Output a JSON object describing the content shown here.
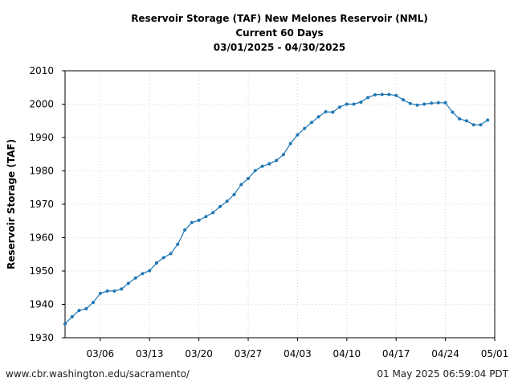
{
  "chart_data": {
    "type": "line",
    "title_lines": [
      "Reservoir Storage (TAF) New Melones Reservoir (NML)",
      "Current 60 Days",
      "03/01/2025 - 04/30/2025"
    ],
    "xlabel": "",
    "ylabel": "Reservoir Storage (TAF)",
    "ylim": [
      1930,
      2010
    ],
    "yticks": [
      1930,
      1940,
      1950,
      1960,
      1970,
      1980,
      1990,
      2000,
      2010
    ],
    "xlim": [
      "2025-03-01",
      "2025-05-01"
    ],
    "xticks": [
      {
        "date": "2025-03-06",
        "label": "03/06"
      },
      {
        "date": "2025-03-13",
        "label": "03/13"
      },
      {
        "date": "2025-03-20",
        "label": "03/20"
      },
      {
        "date": "2025-03-27",
        "label": "03/27"
      },
      {
        "date": "2025-04-03",
        "label": "04/03"
      },
      {
        "date": "2025-04-10",
        "label": "04/10"
      },
      {
        "date": "2025-04-17",
        "label": "04/17"
      },
      {
        "date": "2025-04-24",
        "label": "04/24"
      },
      {
        "date": "2025-05-01",
        "label": "05/01"
      }
    ],
    "grid": true,
    "color": "#1f77b4",
    "series": [
      {
        "x": [
          "2025-03-01",
          "2025-03-02",
          "2025-03-03",
          "2025-03-04",
          "2025-03-05",
          "2025-03-06",
          "2025-03-07",
          "2025-03-08",
          "2025-03-09",
          "2025-03-10",
          "2025-03-11",
          "2025-03-12",
          "2025-03-13",
          "2025-03-14",
          "2025-03-15",
          "2025-03-16",
          "2025-03-17",
          "2025-03-18",
          "2025-03-19",
          "2025-03-20",
          "2025-03-21",
          "2025-03-22",
          "2025-03-23",
          "2025-03-24",
          "2025-03-25",
          "2025-03-26",
          "2025-03-27",
          "2025-03-28",
          "2025-03-29",
          "2025-03-30",
          "2025-03-31",
          "2025-04-01",
          "2025-04-02",
          "2025-04-03",
          "2025-04-04",
          "2025-04-05",
          "2025-04-06",
          "2025-04-07",
          "2025-04-08",
          "2025-04-09",
          "2025-04-10",
          "2025-04-11",
          "2025-04-12",
          "2025-04-13",
          "2025-04-14",
          "2025-04-15",
          "2025-04-16",
          "2025-04-17",
          "2025-04-18",
          "2025-04-19",
          "2025-04-20",
          "2025-04-21",
          "2025-04-22",
          "2025-04-23",
          "2025-04-24",
          "2025-04-25",
          "2025-04-26",
          "2025-04-27",
          "2025-04-28",
          "2025-04-29",
          "2025-04-30"
        ],
        "values": [
          1934.2,
          1936.3,
          1938.2,
          1938.7,
          1940.6,
          1943.3,
          1944.0,
          1944.0,
          1944.6,
          1946.3,
          1947.9,
          1949.2,
          1950.1,
          1952.4,
          1954.0,
          1955.2,
          1958.0,
          1962.3,
          1964.5,
          1965.2,
          1966.3,
          1967.5,
          1969.3,
          1970.9,
          1972.9,
          1975.9,
          1977.7,
          1980.1,
          1981.4,
          1982.1,
          1983.1,
          1984.9,
          1988.2,
          1990.8,
          1992.7,
          1994.5,
          1996.2,
          1997.7,
          1997.6,
          1999.1,
          2000.0,
          2000.0,
          2000.6,
          2002.0,
          2002.8,
          2002.9,
          2002.9,
          2002.6,
          2001.3,
          2000.2,
          1999.7,
          2000.0,
          2000.3,
          2000.4,
          2000.4,
          1997.6,
          1995.6,
          1995.0,
          1993.8,
          1993.8,
          1995.2
        ]
      }
    ]
  },
  "footer": {
    "source_url": "www.cbr.washington.edu/sacramento/",
    "timestamp": "01 May 2025 06:59:04 PDT"
  }
}
